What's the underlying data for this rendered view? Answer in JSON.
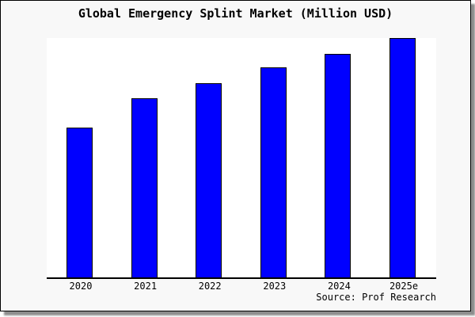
{
  "window": {
    "page_background": "#ffffff",
    "frame_background": "#f8f8f8",
    "frame_border_color": "#000000",
    "plot_background": "#ffffff"
  },
  "chart_data": {
    "type": "bar",
    "title": "Global Emergency Splint Market (Million USD)",
    "categories": [
      "2020",
      "2021",
      "2022",
      "2023",
      "2024",
      "2025e"
    ],
    "values_relative_pct_of_max": [
      62.6,
      74.8,
      81.1,
      87.7,
      93.4,
      100
    ],
    "xlabel": "",
    "ylabel": "",
    "y_axis_ticks": "none shown",
    "ylim": [
      0,
      100
    ],
    "grid": "off",
    "legend": "none",
    "bar_color": "#0000ff",
    "bar_edge_color": "#000000"
  },
  "footer": {
    "source_label": "Source: Prof Research"
  }
}
